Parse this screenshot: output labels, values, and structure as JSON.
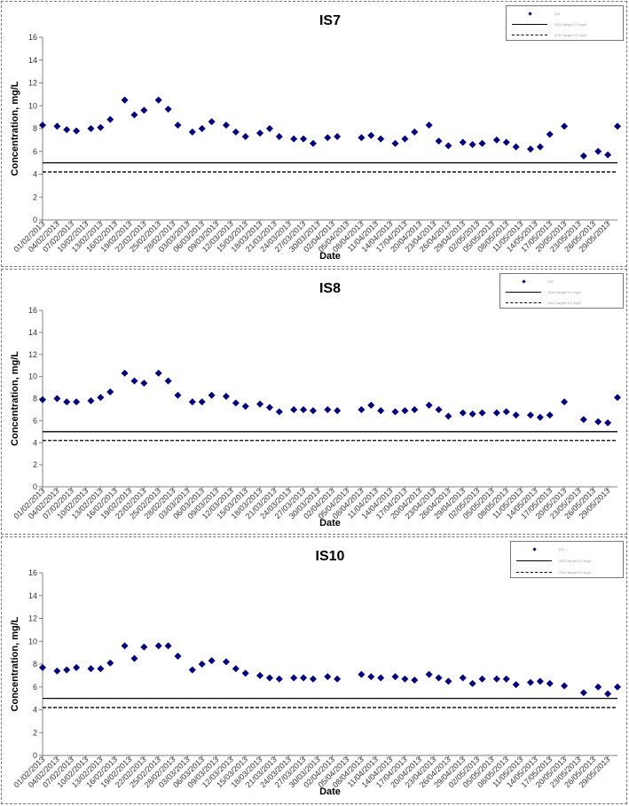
{
  "colors": {
    "marker": "#000080",
    "axis": "#808080",
    "line": "#000000"
  },
  "legend_texts": [
    "DO",
    "2010 target 5.0 mg/L",
    "2012 target 4.2 mg/L"
  ],
  "chart_data": [
    {
      "type": "scatter",
      "title": "IS7",
      "xlabel": "Date",
      "ylabel": "Concentration, mg/L",
      "ylim": [
        0,
        16
      ],
      "yticks": [
        0,
        2,
        4,
        6,
        8,
        10,
        12,
        14,
        16
      ],
      "xlim": [
        "01/02/2013",
        "31/05/2013"
      ],
      "x_tick_labels": [
        "01/02/2013",
        "04/02/2013",
        "07/02/2013",
        "10/02/2013",
        "13/02/2013",
        "16/02/2013",
        "19/02/2013",
        "22/02/2013",
        "25/02/2013",
        "28/02/2013",
        "03/03/2013",
        "06/03/2013",
        "09/03/2013",
        "12/03/2013",
        "15/03/2013",
        "18/03/2013",
        "21/03/2013",
        "24/03/2013",
        "27/03/2013",
        "30/03/2013",
        "02/04/2013",
        "05/04/2013",
        "08/04/2013",
        "11/04/2013",
        "14/04/2013",
        "17/04/2013",
        "20/04/2013",
        "23/04/2013",
        "26/04/2013",
        "29/04/2013",
        "02/05/2013",
        "05/05/2013",
        "08/05/2013",
        "11/05/2013",
        "14/05/2013",
        "17/05/2013",
        "20/05/2013",
        "23/05/2013",
        "26/05/2013",
        "29/05/2013"
      ],
      "reference_lines": [
        {
          "y": 5.0,
          "style": "solid"
        },
        {
          "y": 4.2,
          "style": "dashed"
        }
      ],
      "series": [
        {
          "x": [
            "01/02/2013",
            "04/02/2013",
            "06/02/2013",
            "08/02/2013",
            "11/02/2013",
            "13/02/2013",
            "15/02/2013",
            "18/02/2013",
            "20/02/2013",
            "22/02/2013",
            "25/02/2013",
            "27/02/2013",
            "01/03/2013",
            "04/03/2013",
            "06/03/2013",
            "08/03/2013",
            "11/03/2013",
            "13/03/2013",
            "15/03/2013",
            "18/03/2013",
            "20/03/2013",
            "22/03/2013",
            "25/03/2013",
            "27/03/2013",
            "29/03/2013",
            "01/04/2013",
            "03/04/2013",
            "08/04/2013",
            "10/04/2013",
            "12/04/2013",
            "15/04/2013",
            "17/04/2013",
            "19/04/2013",
            "22/04/2013",
            "24/04/2013",
            "26/04/2013",
            "29/04/2013",
            "01/05/2013",
            "03/05/2013",
            "06/05/2013",
            "08/05/2013",
            "10/05/2013",
            "13/05/2013",
            "15/05/2013",
            "17/05/2013",
            "20/05/2013",
            "24/05/2013",
            "27/05/2013",
            "29/05/2013",
            "31/05/2013"
          ],
          "y": [
            8.3,
            8.2,
            7.9,
            7.8,
            8.0,
            8.1,
            8.8,
            10.5,
            9.2,
            9.6,
            10.5,
            9.7,
            8.3,
            7.7,
            8.0,
            8.6,
            8.3,
            7.7,
            7.3,
            7.6,
            8.0,
            7.3,
            7.1,
            7.1,
            6.7,
            7.2,
            7.3,
            7.2,
            7.4,
            7.1,
            6.7,
            7.1,
            7.7,
            8.3,
            6.9,
            6.5,
            6.8,
            6.6,
            6.7,
            7.0,
            6.8,
            6.4,
            6.2,
            6.4,
            7.5,
            8.2,
            5.6,
            6.0,
            5.7,
            8.2
          ]
        }
      ]
    },
    {
      "type": "scatter",
      "title": "IS8",
      "xlabel": "Date",
      "ylabel": "Concentration, mg/L",
      "ylim": [
        0,
        16
      ],
      "yticks": [
        0,
        2,
        4,
        6,
        8,
        10,
        12,
        14,
        16
      ],
      "xlim": [
        "01/02/2013",
        "31/05/2013"
      ],
      "x_tick_labels": [
        "01/02/2013",
        "04/02/2013",
        "07/02/2013",
        "10/02/2013",
        "13/02/2013",
        "16/02/2013",
        "19/02/2013",
        "22/02/2013",
        "25/02/2013",
        "28/02/2013",
        "03/03/2013",
        "06/03/2013",
        "09/03/2013",
        "12/03/2013",
        "15/03/2013",
        "18/03/2013",
        "21/03/2013",
        "24/03/2013",
        "27/03/2013",
        "30/03/2013",
        "02/04/2013",
        "05/04/2013",
        "08/04/2013",
        "11/04/2013",
        "14/04/2013",
        "17/04/2013",
        "20/04/2013",
        "23/04/2013",
        "26/04/2013",
        "29/04/2013",
        "02/05/2013",
        "05/05/2013",
        "08/05/2013",
        "11/05/2013",
        "14/05/2013",
        "17/05/2013",
        "20/05/2013",
        "23/05/2013",
        "26/05/2013",
        "29/05/2013"
      ],
      "reference_lines": [
        {
          "y": 5.0,
          "style": "solid"
        },
        {
          "y": 4.2,
          "style": "dashed"
        }
      ],
      "series": [
        {
          "x": [
            "01/02/2013",
            "04/02/2013",
            "06/02/2013",
            "08/02/2013",
            "11/02/2013",
            "13/02/2013",
            "15/02/2013",
            "18/02/2013",
            "20/02/2013",
            "22/02/2013",
            "25/02/2013",
            "27/02/2013",
            "01/03/2013",
            "04/03/2013",
            "06/03/2013",
            "08/03/2013",
            "11/03/2013",
            "13/03/2013",
            "15/03/2013",
            "18/03/2013",
            "20/03/2013",
            "22/03/2013",
            "25/03/2013",
            "27/03/2013",
            "29/03/2013",
            "01/04/2013",
            "03/04/2013",
            "08/04/2013",
            "10/04/2013",
            "12/04/2013",
            "15/04/2013",
            "17/04/2013",
            "19/04/2013",
            "22/04/2013",
            "24/04/2013",
            "26/04/2013",
            "29/04/2013",
            "01/05/2013",
            "03/05/2013",
            "06/05/2013",
            "08/05/2013",
            "10/05/2013",
            "13/05/2013",
            "15/05/2013",
            "17/05/2013",
            "20/05/2013",
            "24/05/2013",
            "27/05/2013",
            "29/05/2013",
            "31/05/2013"
          ],
          "y": [
            7.9,
            8.0,
            7.7,
            7.7,
            7.8,
            8.1,
            8.6,
            10.3,
            9.6,
            9.4,
            10.3,
            9.6,
            8.3,
            7.7,
            7.7,
            8.3,
            8.2,
            7.6,
            7.3,
            7.5,
            7.2,
            6.8,
            7.0,
            7.0,
            6.9,
            7.0,
            6.9,
            7.0,
            7.4,
            6.9,
            6.8,
            6.9,
            7.0,
            7.4,
            7.0,
            6.4,
            6.7,
            6.6,
            6.7,
            6.7,
            6.8,
            6.5,
            6.5,
            6.3,
            6.5,
            7.7,
            6.1,
            5.9,
            5.8,
            8.1
          ]
        }
      ]
    },
    {
      "type": "scatter",
      "title": "IS10",
      "xlabel": "Date",
      "ylabel": "Concentration, mg/L",
      "ylim": [
        0,
        16
      ],
      "yticks": [
        0,
        2,
        4,
        6,
        8,
        10,
        12,
        14,
        16
      ],
      "xlim": [
        "01/02/2013",
        "31/05/2013"
      ],
      "x_tick_labels": [
        "01/02/2013",
        "04/02/2013",
        "07/02/2013",
        "10/02/2013",
        "13/02/2013",
        "16/02/2013",
        "19/02/2013",
        "22/02/2013",
        "25/02/2013",
        "28/02/2013",
        "03/03/2013",
        "06/03/2013",
        "09/03/2013",
        "12/03/2013",
        "15/03/2013",
        "18/03/2013",
        "21/03/2013",
        "24/03/2013",
        "27/03/2013",
        "30/03/2013",
        "02/04/2013",
        "05/04/2013",
        "08/04/2013",
        "11/04/2013",
        "14/04/2013",
        "17/04/2013",
        "20/04/2013",
        "23/04/2013",
        "26/04/2013",
        "29/04/2013",
        "02/05/2013",
        "05/05/2013",
        "08/05/2013",
        "11/05/2013",
        "14/05/2013",
        "17/05/2013",
        "20/05/2013",
        "23/05/2013",
        "26/05/2013",
        "29/05/2013"
      ],
      "reference_lines": [
        {
          "y": 5.0,
          "style": "solid"
        },
        {
          "y": 4.2,
          "style": "dashed"
        }
      ],
      "series": [
        {
          "x": [
            "01/02/2013",
            "04/02/2013",
            "06/02/2013",
            "08/02/2013",
            "11/02/2013",
            "13/02/2013",
            "15/02/2013",
            "18/02/2013",
            "20/02/2013",
            "22/02/2013",
            "25/02/2013",
            "27/02/2013",
            "01/03/2013",
            "04/03/2013",
            "06/03/2013",
            "08/03/2013",
            "11/03/2013",
            "13/03/2013",
            "15/03/2013",
            "18/03/2013",
            "20/03/2013",
            "22/03/2013",
            "25/03/2013",
            "27/03/2013",
            "29/03/2013",
            "01/04/2013",
            "03/04/2013",
            "08/04/2013",
            "10/04/2013",
            "12/04/2013",
            "15/04/2013",
            "17/04/2013",
            "19/04/2013",
            "22/04/2013",
            "24/04/2013",
            "26/04/2013",
            "29/04/2013",
            "01/05/2013",
            "03/05/2013",
            "06/05/2013",
            "08/05/2013",
            "10/05/2013",
            "13/05/2013",
            "15/05/2013",
            "17/05/2013",
            "20/05/2013",
            "24/05/2013",
            "27/05/2013",
            "29/05/2013",
            "31/05/2013"
          ],
          "y": [
            7.7,
            7.4,
            7.5,
            7.7,
            7.6,
            7.6,
            8.1,
            9.6,
            8.5,
            9.5,
            9.6,
            9.6,
            8.7,
            7.5,
            8.0,
            8.3,
            8.2,
            7.6,
            7.2,
            7.0,
            6.8,
            6.7,
            6.8,
            6.8,
            6.7,
            6.9,
            6.7,
            7.1,
            6.9,
            6.8,
            6.9,
            6.7,
            6.6,
            7.1,
            6.8,
            6.5,
            6.8,
            6.3,
            6.7,
            6.7,
            6.7,
            6.2,
            6.4,
            6.5,
            6.3,
            6.1,
            5.5,
            6.0,
            5.4,
            6.0
          ]
        }
      ]
    }
  ]
}
